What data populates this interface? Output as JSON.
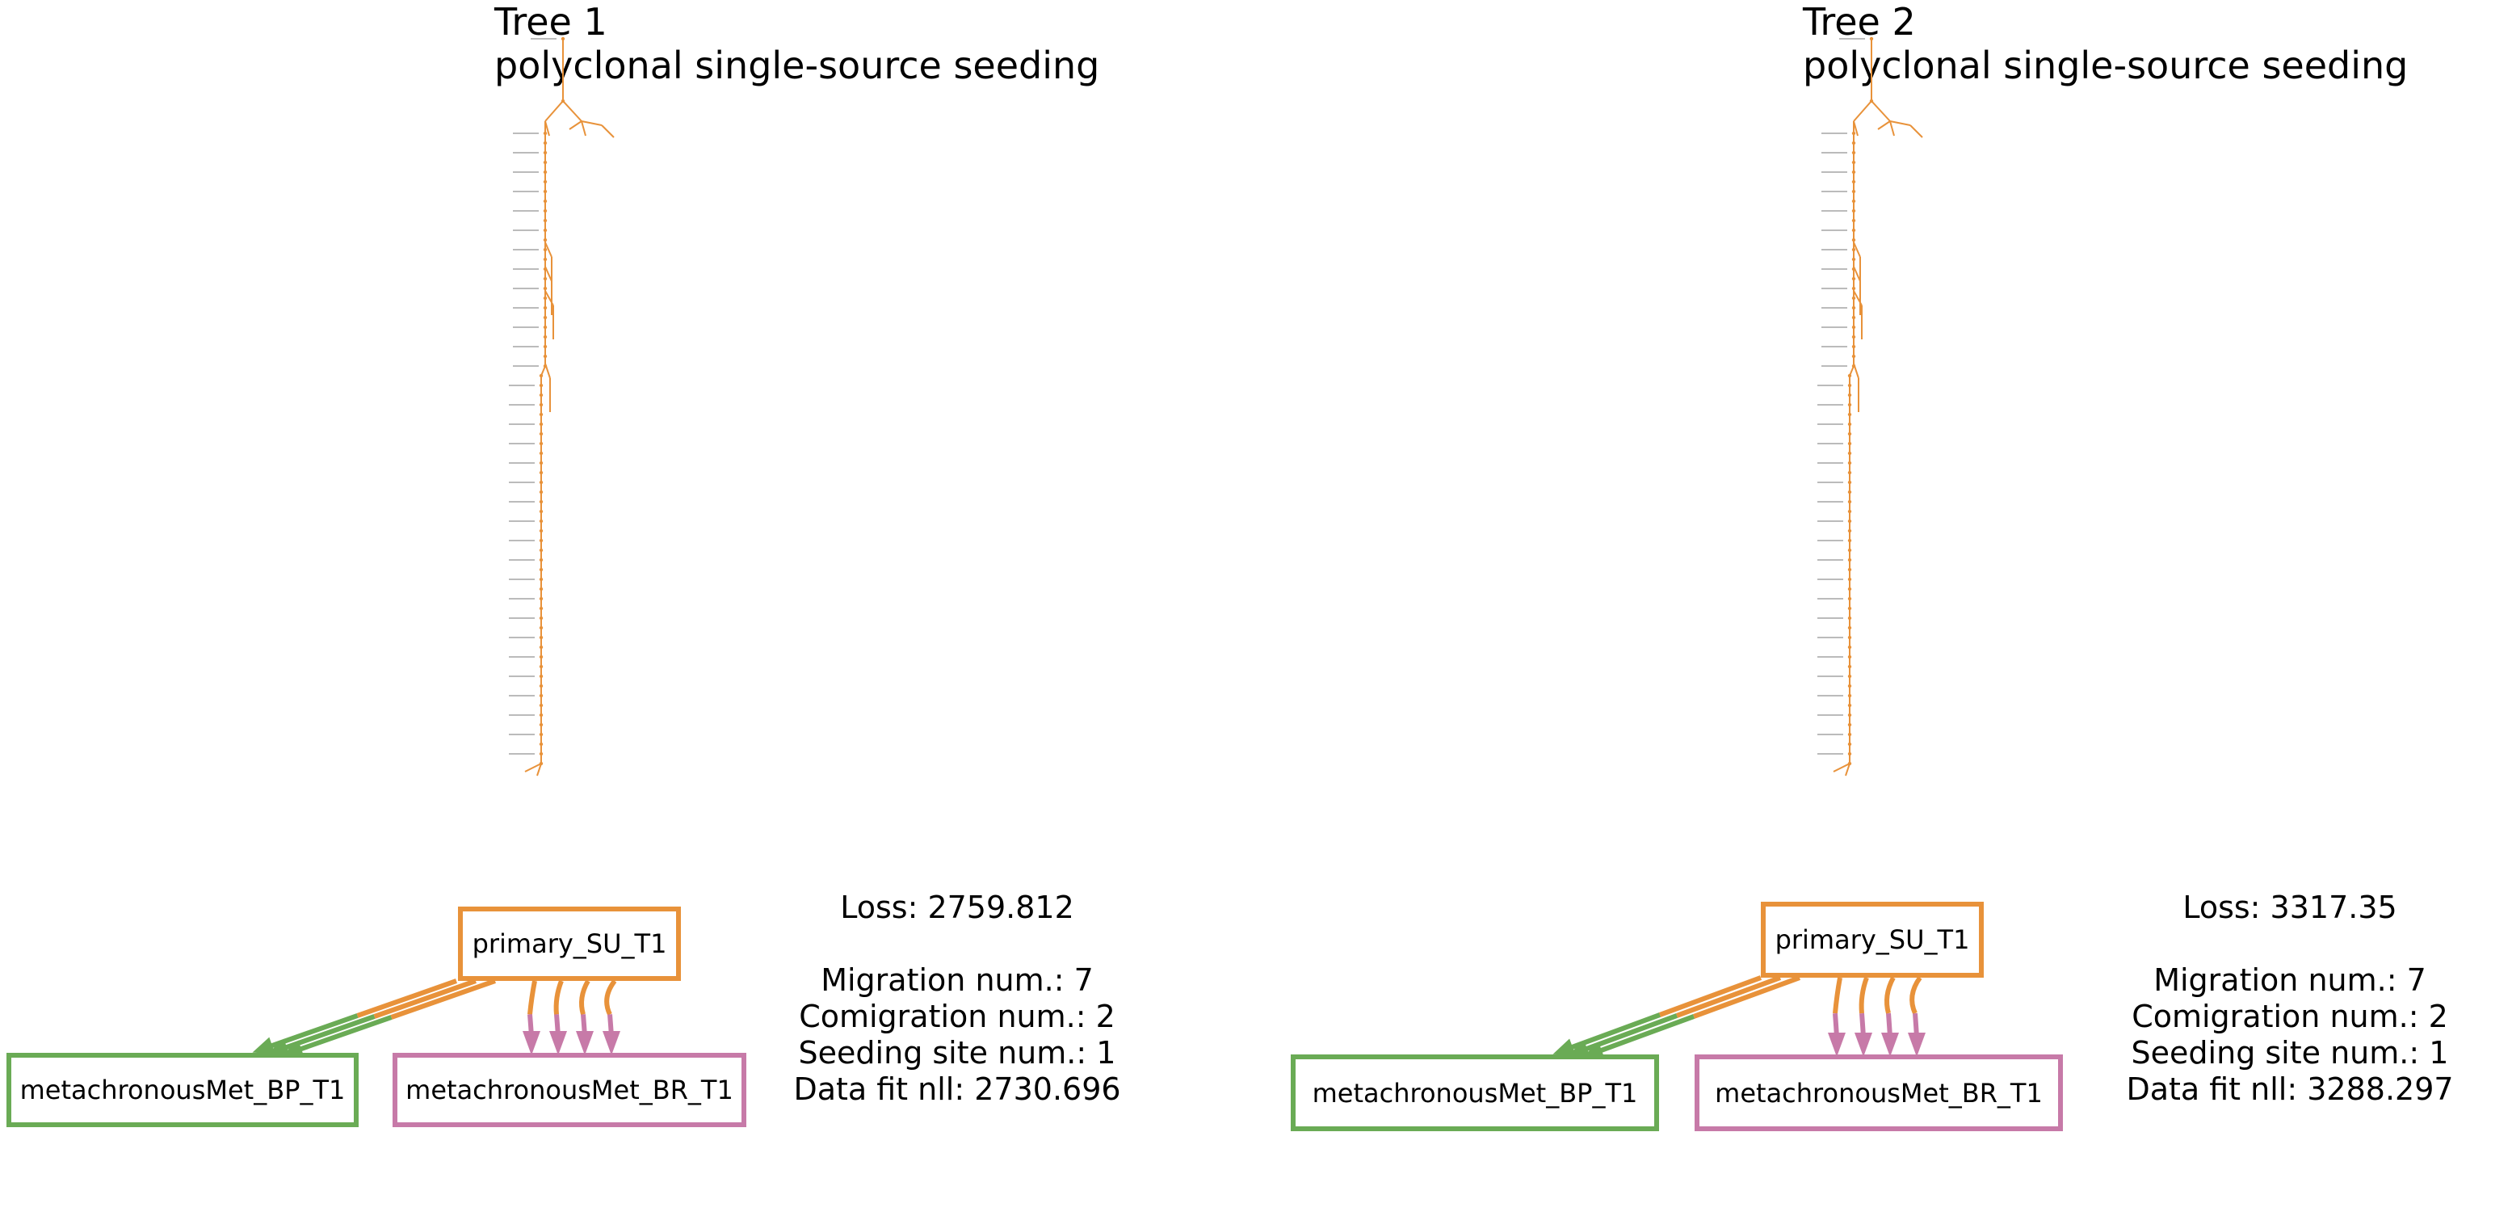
{
  "colors": {
    "primary": "#e8923a",
    "met_bp": "#6aab55",
    "met_br": "#c77aa8",
    "tree_label": "#bbbbbb"
  },
  "trees": [
    {
      "title_line1": "Tree 1",
      "title_line2": "polyclonal single-source seeding",
      "sites": {
        "primary": "primary_SU_T1",
        "met_bp": "metachronousMet_BP_T1",
        "met_br": "metachronousMet_BR_T1"
      },
      "migrations": {
        "primary_to_met_bp": 3,
        "primary_to_met_br": 4
      },
      "loss": "Loss: 2759.812",
      "migration_num": "Migration num.: 7",
      "comigration_num": "Comigration num.: 2",
      "seeding_site_num": "Seeding site num.: 1",
      "data_fit": "Data fit nll: 2730.696"
    },
    {
      "title_line1": "Tree 2",
      "title_line2": "polyclonal single-source seeding",
      "sites": {
        "primary": "primary_SU_T1",
        "met_bp": "metachronousMet_BP_T1",
        "met_br": "metachronousMet_BR_T1"
      },
      "migrations": {
        "primary_to_met_bp": 3,
        "primary_to_met_br": 4
      },
      "loss": "Loss: 3317.35",
      "migration_num": "Migration num.: 7",
      "comigration_num": "Comigration num.: 2",
      "seeding_site_num": "Seeding site num.: 1",
      "data_fit": "Data fit nll: 3288.297"
    }
  ]
}
